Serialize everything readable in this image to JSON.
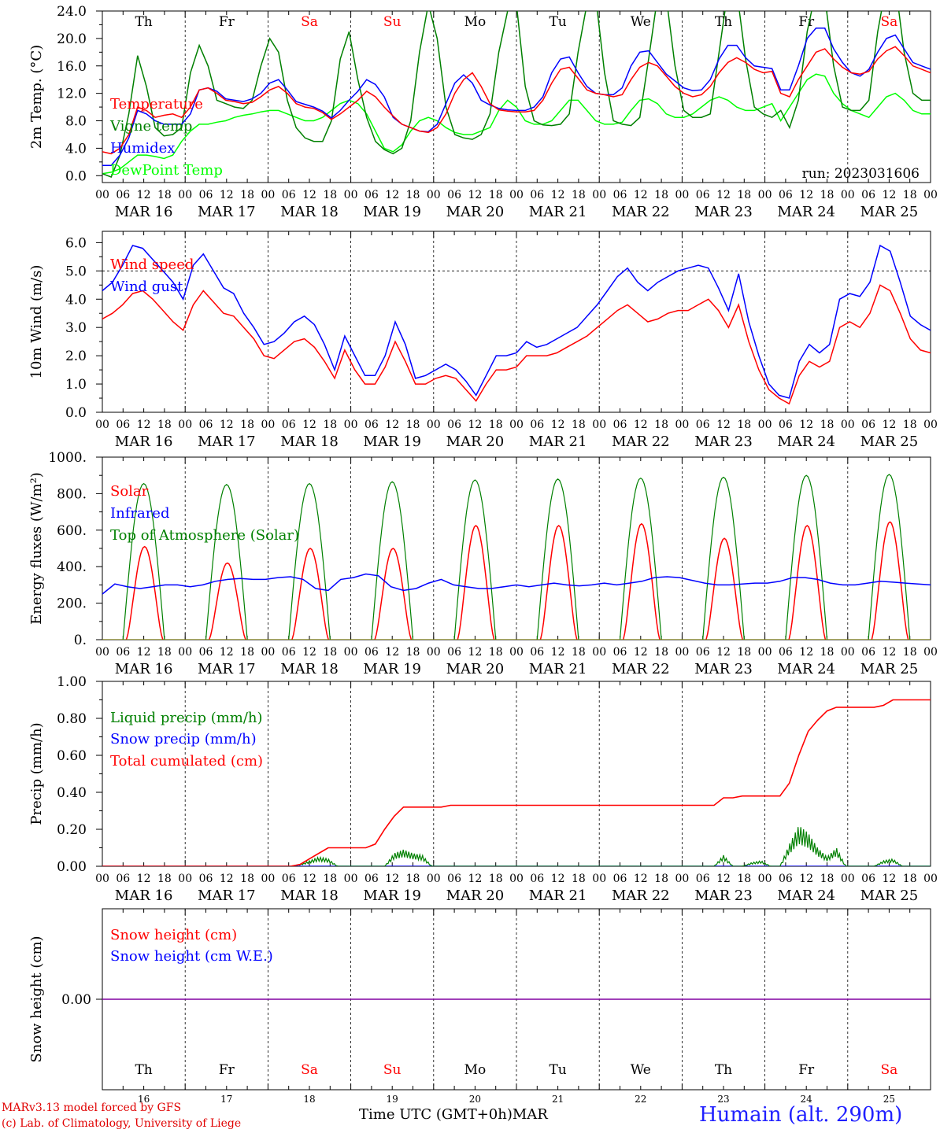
{
  "chart_data": [
    {
      "type": "line",
      "ylabel": "2m Temp. (°C)",
      "ylim": [
        -1.0,
        24.0
      ],
      "yticks": [
        "0.0",
        "4.0",
        "8.0",
        "12.0",
        "16.0",
        "20.0",
        "24.0"
      ],
      "hline": 24.0,
      "annotation": "run: 2023031606",
      "series": [
        {
          "name": "Temperature",
          "color": "#ff0000",
          "values": [
            3.5,
            3.2,
            4,
            6,
            10,
            9.5,
            8.5,
            8.8,
            9,
            8.5,
            10,
            12.5,
            12.8,
            12,
            11,
            10.8,
            10.5,
            10.7,
            11.5,
            12.5,
            13,
            12,
            10.5,
            10,
            9.8,
            9.2,
            8.2,
            9,
            10,
            11,
            12.3,
            11.5,
            10,
            8.7,
            7.5,
            7,
            6.5,
            6.3,
            7,
            9,
            12,
            14,
            15,
            13,
            10.5,
            9.6,
            9.4,
            9.3,
            9.3,
            9.5,
            11,
            13.5,
            15.5,
            15.8,
            14.2,
            12.5,
            12,
            11.8,
            11.5,
            11.8,
            14,
            15.8,
            16.5,
            16,
            14.5,
            13,
            12,
            11.5,
            11.8,
            13,
            15,
            16.5,
            17.2,
            16.5,
            15.5,
            15,
            15.2,
            12,
            11.5,
            14,
            16,
            18,
            18.5,
            17,
            15.8,
            15,
            14.8,
            15.2,
            17,
            18.2,
            18.8,
            17.5,
            16,
            15.5,
            15
          ]
        },
        {
          "name": "Vigne temp",
          "color": "#008000",
          "values": [
            0.3,
            -0.2,
            3,
            9,
            17.5,
            13,
            7,
            5.8,
            6,
            7,
            15,
            19,
            16,
            11,
            10.5,
            10,
            9.8,
            11,
            16,
            20,
            18,
            11,
            7,
            5.5,
            5,
            5,
            8,
            17,
            21,
            14,
            8.5,
            5,
            3.8,
            3.2,
            4,
            8,
            18,
            25,
            20,
            10,
            6,
            5.5,
            5.3,
            6,
            9,
            18,
            24,
            25,
            13,
            8,
            7.4,
            7.3,
            7.5,
            9,
            18,
            25,
            26,
            15,
            8,
            7.5,
            7.3,
            8.5,
            17,
            26,
            26,
            16,
            9.5,
            8.5,
            8.5,
            9,
            18,
            27,
            27,
            17,
            10,
            9,
            8.5,
            9.5,
            7,
            11,
            21,
            27,
            26,
            16,
            10,
            9.5,
            9.5,
            11,
            21,
            28,
            28,
            18,
            12,
            11,
            11
          ]
        },
        {
          "name": "Humidex",
          "color": "#0000ff",
          "values": [
            1.5,
            1.5,
            3,
            5.5,
            9.5,
            9,
            8,
            7.5,
            7.5,
            7.5,
            9,
            12.5,
            12.8,
            12.3,
            11.2,
            11,
            10.8,
            11.2,
            12,
            13.5,
            14,
            12.5,
            10.8,
            10.4,
            10,
            9.4,
            8.4,
            9.5,
            11,
            12.3,
            14,
            13.3,
            11.5,
            8.5,
            7.5,
            7,
            6.5,
            6.4,
            7.5,
            10.5,
            13.5,
            14.7,
            13.5,
            11,
            10.3,
            9.8,
            9.6,
            9.5,
            9.5,
            10,
            11.5,
            15,
            17,
            17.3,
            15,
            13,
            12,
            11.8,
            11.8,
            12.8,
            16,
            18,
            18.2,
            16.5,
            14.8,
            13.8,
            12.8,
            12.4,
            12.5,
            14,
            17,
            19,
            19,
            17.2,
            16,
            15.8,
            15.6,
            12.5,
            12.5,
            16,
            20,
            21.5,
            21.5,
            18.5,
            16.5,
            15,
            14.5,
            15.5,
            18,
            20,
            20.5,
            18.5,
            16.5,
            16,
            15.5
          ]
        },
        {
          "name": "DewPoint Temp",
          "color": "#00ff00",
          "values": [
            0.3,
            0.5,
            1,
            2,
            3,
            3,
            2.8,
            2.5,
            3,
            5,
            6.5,
            7.5,
            7.5,
            7.8,
            8,
            8.5,
            8.8,
            9,
            9.3,
            9.5,
            9.5,
            9,
            8.5,
            8,
            8,
            8.5,
            9.5,
            10.5,
            11,
            10.5,
            9,
            6.5,
            4,
            3.5,
            4.5,
            6.5,
            8,
            8.5,
            8,
            7,
            6.3,
            6,
            6,
            6.5,
            7,
            9.5,
            11,
            10,
            8,
            7.5,
            7.5,
            8,
            9.5,
            11,
            11,
            9.5,
            8,
            7.5,
            7.5,
            7.8,
            9.5,
            11,
            11.2,
            10.5,
            9,
            8.5,
            8.5,
            9,
            10,
            11,
            11.5,
            11,
            10,
            9.5,
            9.5,
            10,
            10.5,
            8,
            10,
            12,
            14,
            14.8,
            14.5,
            12,
            10.5,
            9.5,
            9,
            8.5,
            10,
            11.5,
            12,
            11,
            9.5,
            9,
            9
          ]
        }
      ]
    },
    {
      "type": "line",
      "ylabel": "10m Wind (m/s)",
      "ylim": [
        0.0,
        6.4
      ],
      "yticks": [
        "0.0",
        "1.0",
        "2.0",
        "3.0",
        "4.0",
        "5.0",
        "6.0"
      ],
      "hline": 5.0,
      "series": [
        {
          "name": "Wind speed",
          "color": "#ff0000",
          "values": [
            3.3,
            3.5,
            3.8,
            4.2,
            4.3,
            4.0,
            3.6,
            3.2,
            2.9,
            3.8,
            4.3,
            3.9,
            3.5,
            3.4,
            3.0,
            2.6,
            2.0,
            1.9,
            2.2,
            2.5,
            2.6,
            2.3,
            1.8,
            1.2,
            2.2,
            1.5,
            1.0,
            1.0,
            1.6,
            2.5,
            1.8,
            1.0,
            1.0,
            1.2,
            1.3,
            1.2,
            0.8,
            0.4,
            1.0,
            1.5,
            1.5,
            1.6,
            2.0,
            2.0,
            2.0,
            2.1,
            2.3,
            2.5,
            2.7,
            3.0,
            3.3,
            3.6,
            3.8,
            3.5,
            3.2,
            3.3,
            3.5,
            3.6,
            3.6,
            3.8,
            4.0,
            3.6,
            3.0,
            3.8,
            2.5,
            1.5,
            0.8,
            0.5,
            0.3,
            1.3,
            1.8,
            1.6,
            1.8,
            3.0,
            3.2,
            3.0,
            3.5,
            4.5,
            4.3,
            3.5,
            2.6,
            2.2,
            2.1
          ]
        },
        {
          "name": "Wind gust",
          "color": "#0000ff",
          "values": [
            4.3,
            4.6,
            5.2,
            5.9,
            5.8,
            5.4,
            5.0,
            4.6,
            4.0,
            5.2,
            5.6,
            5.0,
            4.4,
            4.2,
            3.5,
            3.0,
            2.4,
            2.5,
            2.8,
            3.2,
            3.4,
            3.1,
            2.4,
            1.5,
            2.7,
            2.0,
            1.3,
            1.3,
            2.0,
            3.2,
            2.4,
            1.2,
            1.3,
            1.5,
            1.7,
            1.5,
            1.1,
            0.6,
            1.3,
            2.0,
            2.0,
            2.1,
            2.5,
            2.3,
            2.4,
            2.6,
            2.8,
            3.0,
            3.4,
            3.8,
            4.3,
            4.8,
            5.1,
            4.6,
            4.3,
            4.6,
            4.8,
            5.0,
            5.1,
            5.2,
            5.1,
            4.4,
            3.6,
            4.9,
            3.2,
            2.0,
            1.0,
            0.6,
            0.5,
            1.8,
            2.4,
            2.1,
            2.4,
            4.0,
            4.2,
            4.1,
            4.6,
            5.9,
            5.7,
            4.6,
            3.4,
            3.1,
            2.9
          ]
        }
      ]
    },
    {
      "type": "line",
      "ylabel": "Energy fluxes (W/m²)",
      "ylim": [
        0,
        1000
      ],
      "yticks": [
        "0.",
        "200.",
        "400.",
        "600.",
        "800.",
        "1000."
      ],
      "solar_peaks": [
        510,
        420,
        500,
        500,
        625,
        625,
        635,
        555,
        625,
        645
      ],
      "toa_peaks": [
        855,
        850,
        855,
        865,
        875,
        880,
        885,
        890,
        900,
        905
      ],
      "series": [
        {
          "name": "Solar",
          "color": "#ff0000"
        },
        {
          "name": "Infrared",
          "color": "#0000ff",
          "values": [
            250,
            305,
            290,
            280,
            290,
            300,
            300,
            290,
            300,
            320,
            330,
            335,
            330,
            330,
            340,
            345,
            330,
            280,
            270,
            330,
            340,
            360,
            350,
            290,
            270,
            280,
            310,
            330,
            300,
            290,
            280,
            280,
            290,
            300,
            290,
            300,
            310,
            300,
            295,
            300,
            310,
            300,
            310,
            320,
            340,
            345,
            340,
            325,
            310,
            300,
            300,
            305,
            310,
            310,
            320,
            340,
            340,
            330,
            310,
            300,
            300,
            310,
            320,
            315,
            310,
            305,
            300
          ]
        },
        {
          "name": "Top of Atmosphere (Solar)",
          "color": "#008000"
        }
      ]
    },
    {
      "type": "line",
      "ylabel": "Precip (mm/h)",
      "ylim": [
        0.0,
        1.0
      ],
      "yticks": [
        "0.00",
        "0.20",
        "0.40",
        "0.60",
        "0.80",
        "1.00"
      ],
      "series": [
        {
          "name": "Liquid precip (mm/h)",
          "color": "#008000",
          "values": [
            0,
            0,
            0,
            0,
            0,
            0,
            0,
            0,
            0,
            0,
            0,
            0,
            0,
            0,
            0,
            0,
            0,
            0,
            0,
            0,
            0,
            0.01,
            0.03,
            0.05,
            0.04,
            0,
            0,
            0,
            0,
            0,
            0,
            0.07,
            0.09,
            0.07,
            0.06,
            0,
            0,
            0,
            0,
            0,
            0,
            0,
            0,
            0,
            0,
            0,
            0,
            0,
            0,
            0,
            0,
            0,
            0,
            0,
            0,
            0,
            0,
            0,
            0,
            0,
            0,
            0,
            0,
            0,
            0,
            0,
            0.06,
            0,
            0,
            0.02,
            0.03,
            0,
            0,
            0.12,
            0.22,
            0.18,
            0.1,
            0.05,
            0.1,
            0,
            0,
            0,
            0,
            0.03,
            0.04,
            0,
            0,
            0,
            0
          ]
        },
        {
          "name": "Snow precip (mm/h)",
          "color": "#0000ff",
          "values": []
        },
        {
          "name": "Total cumulated (cm)",
          "color": "#ff0000",
          "values": [
            0,
            0,
            0,
            0,
            0,
            0,
            0,
            0,
            0,
            0,
            0,
            0,
            0,
            0,
            0,
            0,
            0,
            0,
            0,
            0,
            0,
            0.01,
            0.04,
            0.07,
            0.1,
            0.1,
            0.1,
            0.1,
            0.1,
            0.12,
            0.2,
            0.27,
            0.32,
            0.32,
            0.32,
            0.32,
            0.32,
            0.33,
            0.33,
            0.33,
            0.33,
            0.33,
            0.33,
            0.33,
            0.33,
            0.33,
            0.33,
            0.33,
            0.33,
            0.33,
            0.33,
            0.33,
            0.33,
            0.33,
            0.33,
            0.33,
            0.33,
            0.33,
            0.33,
            0.33,
            0.33,
            0.33,
            0.33,
            0.33,
            0.33,
            0.33,
            0.37,
            0.37,
            0.38,
            0.38,
            0.38,
            0.38,
            0.38,
            0.45,
            0.6,
            0.73,
            0.79,
            0.84,
            0.86,
            0.86,
            0.86,
            0.86,
            0.86,
            0.87,
            0.9,
            0.9,
            0.9,
            0.9,
            0.9
          ]
        }
      ]
    },
    {
      "type": "line",
      "ylabel": "Snow height (cm)",
      "ylim": [
        -1,
        1
      ],
      "yticks": [
        "0.00"
      ],
      "series": [
        {
          "name": "Snow height (cm)",
          "color": "#ff0000",
          "values": [
            0,
            0
          ]
        },
        {
          "name": "Snow height (cm W.E.)",
          "color": "#0000ff",
          "values": [
            0,
            0
          ]
        }
      ]
    }
  ],
  "x_axis": {
    "days": [
      "MAR 16",
      "MAR 17",
      "MAR 18",
      "MAR 19",
      "MAR 20",
      "MAR 21",
      "MAR 22",
      "MAR 23",
      "MAR 24",
      "MAR 25"
    ],
    "hour_ticks": [
      "00",
      "06",
      "12",
      "18"
    ],
    "final_tick": "00",
    "weekdays": [
      "Th",
      "Fr",
      "Sa",
      "Su",
      "Mo",
      "Tu",
      "We",
      "Th",
      "Fr",
      "Sa"
    ],
    "weekend_flags": [
      false,
      false,
      true,
      true,
      false,
      false,
      false,
      false,
      false,
      true
    ],
    "day_numbers": [
      "16",
      "17",
      "18",
      "19",
      "20",
      "21",
      "22",
      "23",
      "24",
      "25"
    ],
    "month": "MAR"
  },
  "colors": {
    "weekday": "#000000",
    "weekend": "#ff0000",
    "axis": "#000000",
    "grid": "#000000"
  },
  "footer": {
    "model": "MARv3.13 model forced by GFS",
    "credit": "(c) Lab. of Climatology, University of Liege",
    "time_label": "Time UTC (GMT+0h)",
    "month": "MAR",
    "station": "Humain (alt. 290m)"
  }
}
